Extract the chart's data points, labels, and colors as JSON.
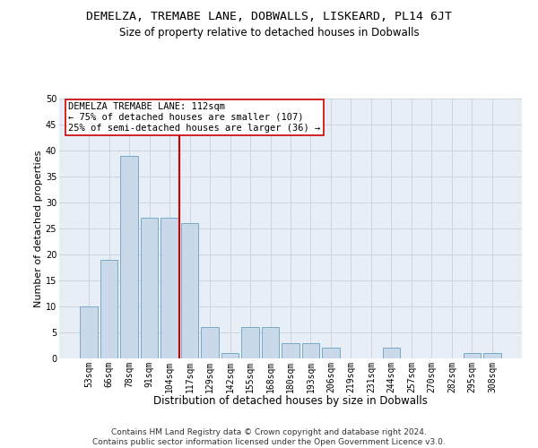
{
  "title1": "DEMELZA, TREMABE LANE, DOBWALLS, LISKEARD, PL14 6JT",
  "title2": "Size of property relative to detached houses in Dobwalls",
  "xlabel": "Distribution of detached houses by size in Dobwalls",
  "ylabel": "Number of detached properties",
  "categories": [
    "53sqm",
    "66sqm",
    "78sqm",
    "91sqm",
    "104sqm",
    "117sqm",
    "129sqm",
    "142sqm",
    "155sqm",
    "168sqm",
    "180sqm",
    "193sqm",
    "206sqm",
    "219sqm",
    "231sqm",
    "244sqm",
    "257sqm",
    "270sqm",
    "282sqm",
    "295sqm",
    "308sqm"
  ],
  "values": [
    10,
    19,
    39,
    27,
    27,
    26,
    6,
    1,
    6,
    6,
    3,
    3,
    2,
    0,
    0,
    2,
    0,
    0,
    0,
    1,
    1
  ],
  "bar_color": "#c9d9ea",
  "bar_edge_color": "#7aaac8",
  "bar_linewidth": 0.7,
  "vline_color": "#cc0000",
  "annotation_text": "DEMELZA TREMABE LANE: 112sqm\n← 75% of detached houses are smaller (107)\n25% of semi-detached houses are larger (36) →",
  "annotation_box_color": "#ffffff",
  "annotation_box_edge": "#cc0000",
  "ylim": [
    0,
    50
  ],
  "yticks": [
    0,
    5,
    10,
    15,
    20,
    25,
    30,
    35,
    40,
    45,
    50
  ],
  "grid_color": "#ccd5e0",
  "bg_color": "#e8eef5",
  "footnote": "Contains HM Land Registry data © Crown copyright and database right 2024.\nContains public sector information licensed under the Open Government Licence v3.0.",
  "title1_fontsize": 9.5,
  "title2_fontsize": 8.5,
  "xlabel_fontsize": 8.5,
  "ylabel_fontsize": 8,
  "tick_fontsize": 7,
  "annotation_fontsize": 7.5,
  "footnote_fontsize": 6.5
}
